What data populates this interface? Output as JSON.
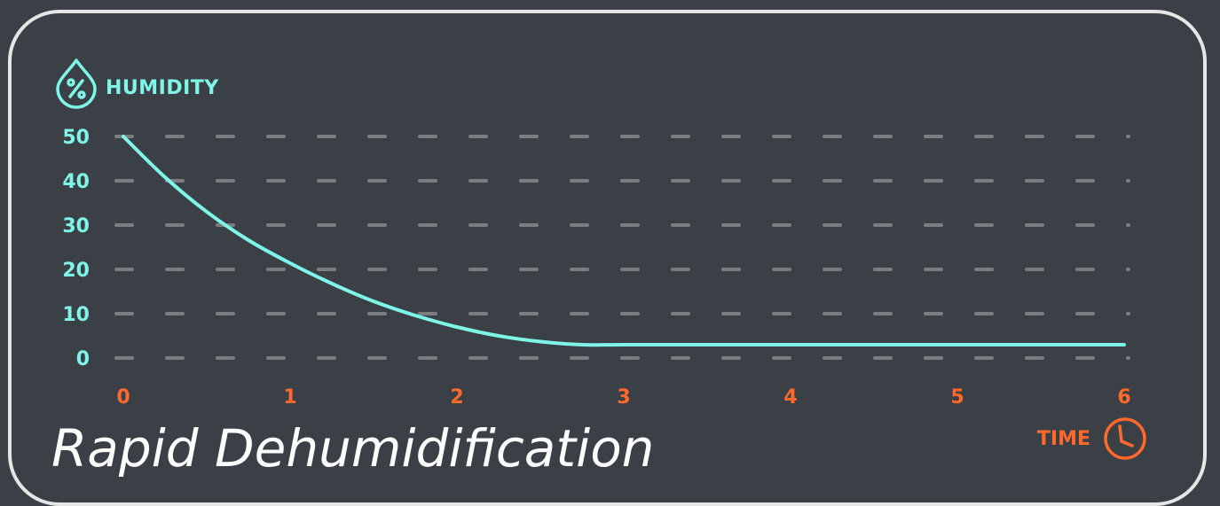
{
  "chart_data": {
    "type": "line",
    "title": "Rapid Dehumidification",
    "xlabel": "TIME",
    "ylabel": "HUMIDITY",
    "x_ticks": [
      "0",
      "1",
      "2",
      "3",
      "4",
      "5",
      "6"
    ],
    "y_ticks": [
      "0",
      "10",
      "20",
      "30",
      "40",
      "50"
    ],
    "xlim": [
      0,
      6
    ],
    "ylim": [
      0,
      50
    ],
    "grid": true,
    "series": [
      {
        "x": [
          0,
          0.25,
          0.5,
          0.75,
          1,
          1.25,
          1.5,
          1.75,
          2,
          2.25,
          2.5,
          2.75,
          3,
          3.5,
          4,
          4.5,
          5,
          5.5,
          6
        ],
        "values": [
          50,
          40.8,
          33,
          26.6,
          21.4,
          16.8,
          12.8,
          9.6,
          7,
          5,
          3.7,
          3,
          3,
          3,
          3,
          3,
          3,
          3,
          3
        ]
      }
    ],
    "colors": {
      "line": "#7ff5e8",
      "y_axis": "#7ff5e8",
      "x_axis": "#ff6a2c",
      "grid": "#7b7d81",
      "title": "#ffffff",
      "frame": "#e6e6e6"
    },
    "icons": {
      "ylabel": "humidity-percent-drop-icon",
      "xlabel": "clock-icon"
    }
  }
}
